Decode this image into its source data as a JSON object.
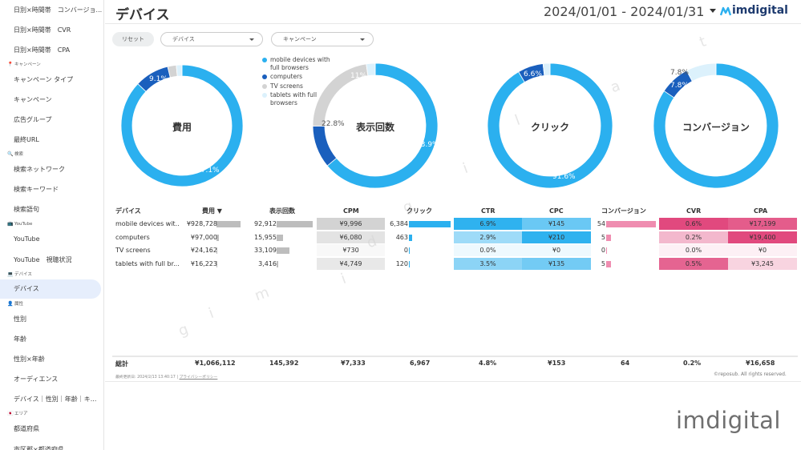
{
  "sidebar": {
    "items": [
      {
        "kind": "item",
        "label": "日別×時間帯　コンバージョ..."
      },
      {
        "kind": "item",
        "label": "日別×時間帯　CVR"
      },
      {
        "kind": "item",
        "label": "日別×時間帯　CPA"
      },
      {
        "kind": "head",
        "label": "キャンペーン",
        "icon": "pin-icon",
        "glyph": "📍"
      },
      {
        "kind": "item",
        "label": "キャンペーン タイプ"
      },
      {
        "kind": "item",
        "label": "キャンペーン"
      },
      {
        "kind": "item",
        "label": "広告グループ"
      },
      {
        "kind": "item",
        "label": "最終URL"
      },
      {
        "kind": "head",
        "label": "検索",
        "icon": "search-icon",
        "glyph": "🔍"
      },
      {
        "kind": "item",
        "label": "検索ネットワーク"
      },
      {
        "kind": "item",
        "label": "検索キーワード"
      },
      {
        "kind": "item",
        "label": "検索語句"
      },
      {
        "kind": "head",
        "label": "YouTube",
        "icon": "tv-icon",
        "glyph": "📺"
      },
      {
        "kind": "item",
        "label": "YouTube"
      },
      {
        "kind": "item",
        "label": "YouTube　視聴状況"
      },
      {
        "kind": "head",
        "label": "デバイス",
        "icon": "monitor-icon",
        "glyph": "💻"
      },
      {
        "kind": "item",
        "label": "デバイス",
        "active": true
      },
      {
        "kind": "head",
        "label": "属性",
        "icon": "person-icon",
        "glyph": "👤"
      },
      {
        "kind": "item",
        "label": "性別"
      },
      {
        "kind": "item",
        "label": "年齢"
      },
      {
        "kind": "item",
        "label": "性別×年齢"
      },
      {
        "kind": "item",
        "label": "オーディエンス"
      },
      {
        "kind": "item",
        "label": "デバイス｜性別｜年齢｜キ..."
      },
      {
        "kind": "head",
        "label": "エリア",
        "icon": "japan-flag-icon",
        "glyph": "🇯🇵"
      },
      {
        "kind": "item",
        "label": "都道府県"
      },
      {
        "kind": "item",
        "label": "市区郡×都道府県"
      }
    ]
  },
  "header": {
    "title": "デバイス",
    "date_range": "2024/01/01 - 2024/01/31",
    "logo_text": "imdigital"
  },
  "filters": {
    "reset_label": "リセット",
    "device_label": "デバイス",
    "campaign_label": "キャンペーン"
  },
  "colors": {
    "mobile": "#2bb0ef",
    "computers": "#1a5fbd",
    "tv": "#d3d3d3",
    "tablets": "#dcf1fc",
    "accent_pink": "#e0457b"
  },
  "legend": [
    {
      "label": "mobile devices with full browsers",
      "color": "#2bb0ef"
    },
    {
      "label": "computers",
      "color": "#1a5fbd"
    },
    {
      "label": "TV screens",
      "color": "#d3d3d3"
    },
    {
      "label": "tablets with full browsers",
      "color": "#dcf1fc"
    }
  ],
  "chart_data": [
    {
      "type": "pie",
      "title": "費用",
      "categories": [
        "mobile devices with full browsers",
        "computers",
        "TV screens",
        "tablets with full browsers"
      ],
      "values": [
        87.1,
        9.1,
        2.3,
        1.5
      ],
      "labels": [
        "87.1%",
        "9.1%",
        "",
        ""
      ]
    },
    {
      "type": "pie",
      "title": "表示回数",
      "categories": [
        "mobile devices with full browsers",
        "computers",
        "TV screens",
        "tablets with full browsers"
      ],
      "values": [
        63.9,
        11.0,
        22.8,
        2.3
      ],
      "labels": [
        "63.9%",
        "11%",
        "22.8%",
        ""
      ]
    },
    {
      "type": "pie",
      "title": "クリック",
      "categories": [
        "mobile devices with full browsers",
        "computers",
        "TV screens",
        "tablets with full browsers"
      ],
      "values": [
        91.6,
        6.6,
        0,
        1.8
      ],
      "labels": [
        "91.6%",
        "6.6%",
        "",
        ""
      ]
    },
    {
      "type": "pie",
      "title": "コンバージョン",
      "categories": [
        "mobile devices with full browsers",
        "computers",
        "TV screens",
        "tablets with full browsers"
      ],
      "values": [
        84.4,
        7.8,
        0,
        7.8
      ],
      "labels": [
        "84.4%",
        "7.8%",
        "",
        "7.8%"
      ]
    }
  ],
  "table": {
    "headers": [
      "デバイス",
      "費用 ▼",
      "表示回数",
      "CPM",
      "クリック",
      "CTR",
      "CPC",
      "コンバージョン",
      "CVR",
      "CPA"
    ],
    "rows": [
      {
        "device": "mobile devices wit...",
        "cost": "¥928,728",
        "cost_n": 928728,
        "impr": "92,912",
        "impr_n": 92912,
        "cpm": "¥9,996",
        "cpm_n": 9996,
        "clicks": "6,384",
        "clicks_n": 6384,
        "ctr": "6.9%",
        "ctr_n": 6.9,
        "cpc": "¥145",
        "cpc_n": 145,
        "conv": "54",
        "conv_n": 54,
        "cvr": "0.6%",
        "cvr_n": 0.6,
        "cpa": "¥17,199",
        "cpa_n": 17199
      },
      {
        "device": "computers",
        "cost": "¥97,000",
        "cost_n": 97000,
        "impr": "15,955",
        "impr_n": 15955,
        "cpm": "¥6,080",
        "cpm_n": 6080,
        "clicks": "463",
        "clicks_n": 463,
        "ctr": "2.9%",
        "ctr_n": 2.9,
        "cpc": "¥210",
        "cpc_n": 210,
        "conv": "5",
        "conv_n": 5,
        "cvr": "0.2%",
        "cvr_n": 0.2,
        "cpa": "¥19,400",
        "cpa_n": 19400
      },
      {
        "device": "TV screens",
        "cost": "¥24,162",
        "cost_n": 24162,
        "impr": "33,109",
        "impr_n": 33109,
        "cpm": "¥730",
        "cpm_n": 730,
        "clicks": "0",
        "clicks_n": 0,
        "ctr": "0.0%",
        "ctr_n": 0,
        "cpc": "¥0",
        "cpc_n": 0,
        "conv": "0",
        "conv_n": 0,
        "cvr": "0.0%",
        "cvr_n": 0,
        "cpa": "¥0",
        "cpa_n": 0
      },
      {
        "device": "tablets with full br...",
        "cost": "¥16,223",
        "cost_n": 16223,
        "impr": "3,416",
        "impr_n": 3416,
        "cpm": "¥4,749",
        "cpm_n": 4749,
        "clicks": "120",
        "clicks_n": 120,
        "ctr": "3.5%",
        "ctr_n": 3.5,
        "cpc": "¥135",
        "cpc_n": 135,
        "conv": "5",
        "conv_n": 5,
        "cvr": "0.5%",
        "cvr_n": 0.5,
        "cpa": "¥3,245",
        "cpa_n": 3245
      }
    ],
    "totals": {
      "label": "総計",
      "cost": "¥1,066,112",
      "impr": "145,392",
      "cpm": "¥7,333",
      "clicks": "6,967",
      "ctr": "4.8%",
      "cpc": "¥153",
      "conv": "64",
      "cvr": "0.2%",
      "cpa": "¥16,658"
    }
  },
  "footer": {
    "updated": "最終更新日: 2024/2/13 13:40:17",
    "separator": "|",
    "privacy": "プライバシーポリシー",
    "copyright": "©reposub. All rights reserved.",
    "brand": "imdigital"
  },
  "watermark": [
    "t",
    "a",
    "l",
    "i",
    "g",
    "d",
    "i",
    "m",
    "i",
    "g",
    "i",
    "t",
    "a",
    "l"
  ]
}
